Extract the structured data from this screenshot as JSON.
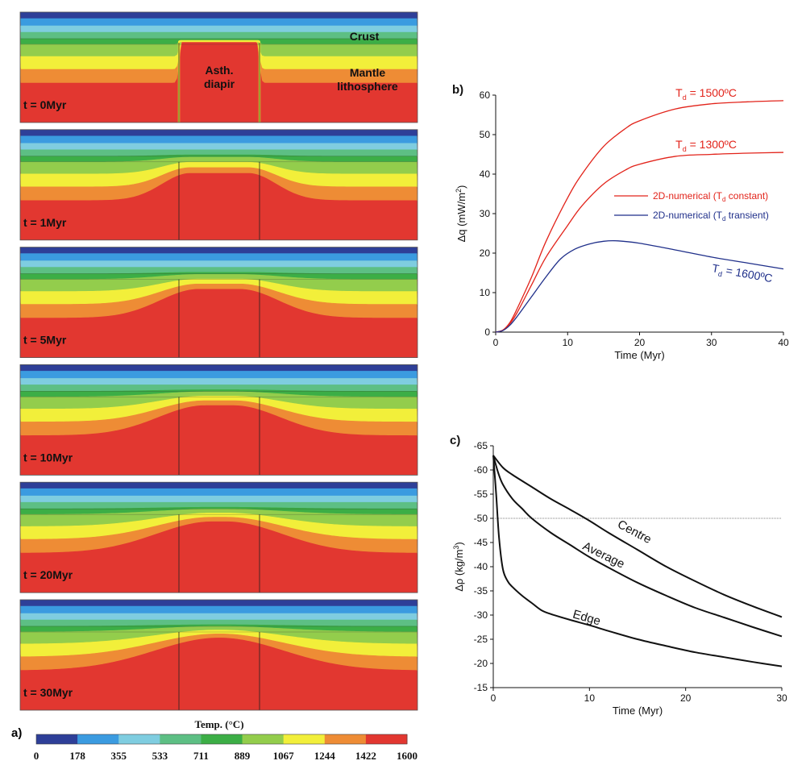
{
  "panel_a": {
    "label": "a)",
    "snapshots": [
      {
        "time_label": "t = 0Myr",
        "progress": 0
      },
      {
        "time_label": "t = 1Myr",
        "progress": 0.22
      },
      {
        "time_label": "t = 5Myr",
        "progress": 0.45
      },
      {
        "time_label": "t = 10Myr",
        "progress": 0.62
      },
      {
        "time_label": "t = 20Myr",
        "progress": 0.82
      },
      {
        "time_label": "t = 30Myr",
        "progress": 1.0
      }
    ],
    "annotations": {
      "crust": "Crust",
      "mantle_line1": "Mantle",
      "mantle_line2": "lithosphere",
      "diapir_line1": "Asth.",
      "diapir_line2": "diapir"
    },
    "colorbar": {
      "title": "Temp. (°C)",
      "ticks": [
        "0",
        "178",
        "355",
        "533",
        "711",
        "889",
        "1067",
        "1244",
        "1422",
        "1600"
      ],
      "colors": [
        "#2e3f98",
        "#3b9be0",
        "#7fcde0",
        "#5dbf84",
        "#3cae46",
        "#93cd4c",
        "#f2ef3a",
        "#ee8c35",
        "#e23730"
      ]
    }
  },
  "chart_data": [
    {
      "panel_label": "b)",
      "type": "line",
      "xlabel": "Time (Myr)",
      "ylabel_main": "Δq (mW/m",
      "ylabel_sup": "2",
      "ylabel_end": ")",
      "xlim": [
        0,
        40
      ],
      "ylim": [
        0,
        60
      ],
      "xticks": [
        0,
        10,
        20,
        30,
        40
      ],
      "yticks": [
        0,
        10,
        20,
        30,
        40,
        50,
        60
      ],
      "series": [
        {
          "color": "#e2231a",
          "x": [
            0,
            1,
            2,
            3,
            5,
            7,
            10,
            12,
            15,
            18,
            20,
            25,
            30,
            35,
            40
          ],
          "y": [
            0,
            0.5,
            2.5,
            6,
            14,
            23,
            34,
            40,
            47,
            51.5,
            53.5,
            56.5,
            57.8,
            58.3,
            58.6
          ]
        },
        {
          "color": "#e2231a",
          "x": [
            0,
            1,
            2,
            3,
            5,
            7,
            10,
            12,
            15,
            18,
            20,
            25,
            30,
            35,
            40
          ],
          "y": [
            0,
            0.5,
            2.2,
            5,
            12,
            19,
            27,
            32,
            37.5,
            41,
            42.5,
            44.5,
            45,
            45.3,
            45.5
          ]
        },
        {
          "color": "#1f2f8a",
          "x": [
            0,
            1,
            2,
            3,
            5,
            7,
            9,
            11,
            13,
            15,
            17,
            20,
            25,
            30,
            35,
            40
          ],
          "y": [
            0,
            0.4,
            1.8,
            4,
            9,
            14,
            18.5,
            21,
            22.3,
            23,
            23.1,
            22.5,
            20.8,
            19,
            17.5,
            16
          ]
        }
      ],
      "curve_labels": [
        {
          "base": "T",
          "sub": "d",
          "rest": " = 1500ºC",
          "color": "#e2231a",
          "x": 25,
          "y": 59.6
        },
        {
          "base": "T",
          "sub": "d",
          "rest": " = 1300ºC",
          "color": "#e2231a",
          "x": 25,
          "y": 46.5
        },
        {
          "base": "T",
          "sub": "d",
          "rest": " = 1600ºC",
          "color": "#1f2f8a",
          "x": 30,
          "y": 15.3
        }
      ],
      "legend": [
        {
          "color": "#e2231a",
          "pre": "2D-numerical (T",
          "sub": "d",
          "post": " constant)"
        },
        {
          "color": "#1f2f8a",
          "pre": "2D-numerical (T",
          "sub": "d",
          "post": " transient)"
        }
      ]
    },
    {
      "panel_label": "c)",
      "type": "line",
      "xlabel": "Time (Myr)",
      "ylabel_main": "Δρ (kg/m",
      "ylabel_sup": "3",
      "ylabel_end": ")",
      "xlim": [
        0,
        30
      ],
      "ylim": [
        -65,
        -15
      ],
      "yreversed": true,
      "xticks": [
        0,
        10,
        20,
        30
      ],
      "yticks": [
        -65,
        -60,
        -55,
        -50,
        -45,
        -40,
        -35,
        -30,
        -25,
        -20,
        -15
      ],
      "reference_line": -50,
      "series": [
        {
          "name": "Centre",
          "x": [
            0,
            1,
            2,
            4,
            6,
            8,
            10,
            12,
            15,
            18,
            21,
            24,
            27,
            30
          ],
          "y": [
            -63,
            -60.5,
            -59,
            -56.5,
            -54,
            -51.8,
            -49.5,
            -47,
            -43.5,
            -40,
            -37,
            -34.2,
            -31.8,
            -29.6
          ]
        },
        {
          "name": "Average",
          "x": [
            0,
            0.5,
            1,
            2,
            3,
            4,
            6,
            8,
            10,
            12,
            15,
            18,
            21,
            24,
            27,
            30
          ],
          "y": [
            -63,
            -59.5,
            -57,
            -54,
            -52,
            -50,
            -47,
            -44.5,
            -42,
            -39.8,
            -36.7,
            -34,
            -31.5,
            -29.5,
            -27.5,
            -25.6
          ]
        },
        {
          "name": "Edge",
          "x": [
            0,
            0.3,
            0.6,
            1,
            1.5,
            2,
            3,
            4,
            5,
            6,
            8,
            10,
            12,
            15,
            18,
            21,
            24,
            27,
            30
          ],
          "y": [
            -63,
            -55,
            -46,
            -39.5,
            -37,
            -35.8,
            -34,
            -32.5,
            -31,
            -30.2,
            -29,
            -27.9,
            -26.7,
            -25,
            -23.6,
            -22.3,
            -21.3,
            -20.3,
            -19.4
          ]
        }
      ],
      "curve_label_positions": [
        {
          "x": 14.5,
          "y": -46.5,
          "angle": 28
        },
        {
          "x": 11.3,
          "y": -41.7,
          "angle": 26
        },
        {
          "x": 9.6,
          "y": -28.7,
          "angle": 16
        }
      ]
    }
  ]
}
